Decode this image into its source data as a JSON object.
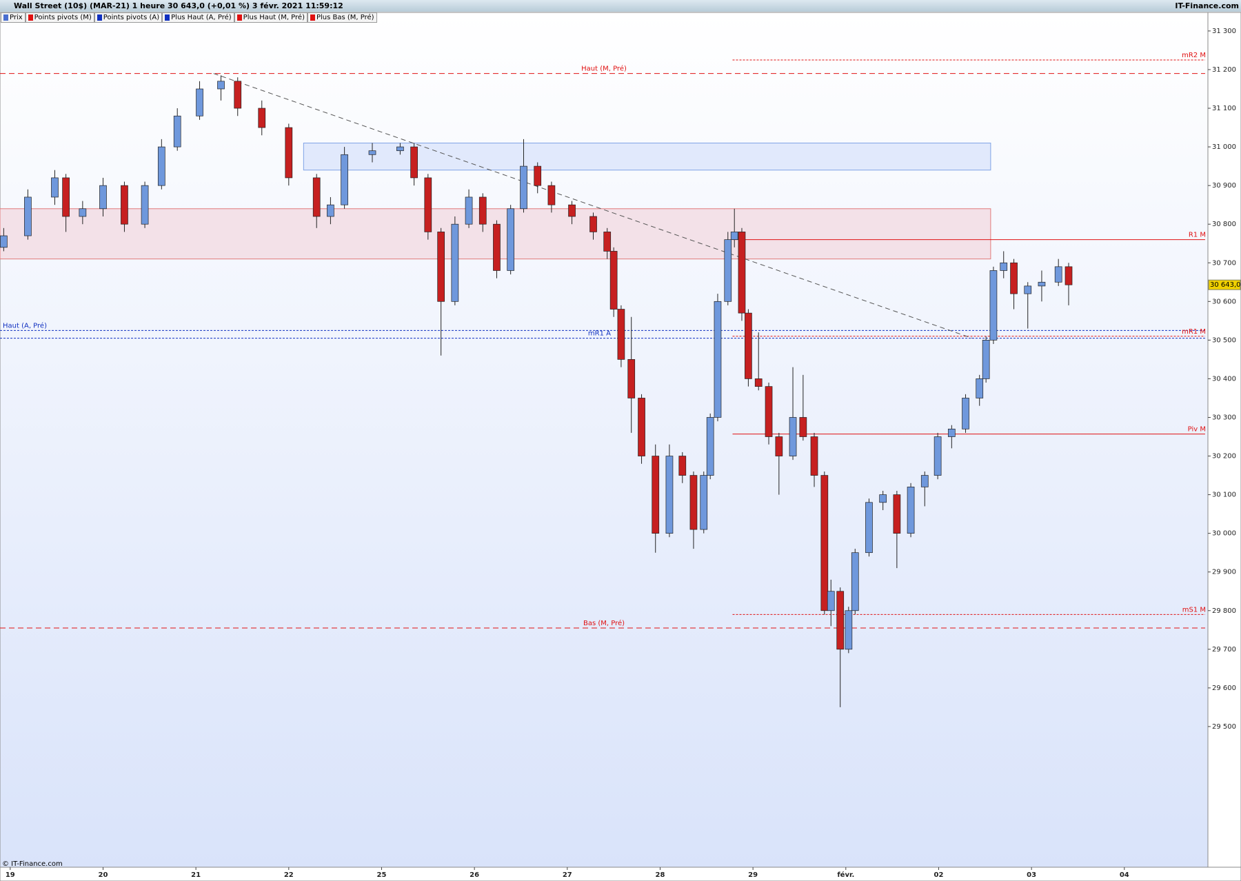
{
  "header": {
    "title": "Wall Street (10$) (MAR-21) 1 heure 30 643,0 (+0,01 %) 3 févr. 2021 11:59:12",
    "source": "IT-Finance.com"
  },
  "legend": [
    {
      "name": "Prix",
      "color": "#4a6fd0"
    },
    {
      "name": "Points pivots (M)",
      "color": "#e01010"
    },
    {
      "name": "Points pivots (A)",
      "color": "#1030c0"
    },
    {
      "name": "Plus Haut (A, Pré)",
      "color": "#1030c0"
    },
    {
      "name": "Plus Haut (M, Pré)",
      "color": "#e01010"
    },
    {
      "name": "Plus Bas (M, Pré)",
      "color": "#e01010"
    }
  ],
  "footer": "© IT-Finance.com",
  "chart_data": {
    "type": "candlestick",
    "up_color": "#6f98dc",
    "down_color": "#c62020",
    "xlim": [
      -0.11,
      12.9
    ],
    "ylim": [
      29136,
      31348
    ],
    "xticks": [
      {
        "value": 0,
        "label": "19"
      },
      {
        "value": 1,
        "label": "20"
      },
      {
        "value": 2,
        "label": "21"
      },
      {
        "value": 3,
        "label": "22"
      },
      {
        "value": 4,
        "label": "25"
      },
      {
        "value": 5,
        "label": "26"
      },
      {
        "value": 6,
        "label": "27"
      },
      {
        "value": 7,
        "label": "28"
      },
      {
        "value": 8,
        "label": "29"
      },
      {
        "value": 9,
        "label": "févr."
      },
      {
        "value": 10,
        "label": "02"
      },
      {
        "value": 11,
        "label": "03"
      },
      {
        "value": 12,
        "label": "04"
      }
    ],
    "yticks": [
      {
        "value": 29500,
        "label": "29 500"
      },
      {
        "value": 29600,
        "label": "29 600"
      },
      {
        "value": 29700,
        "label": "29 700"
      },
      {
        "value": 29800,
        "label": "29 800"
      },
      {
        "value": 29900,
        "label": "29 900"
      },
      {
        "value": 30000,
        "label": "30 000"
      },
      {
        "value": 30100,
        "label": "30 100"
      },
      {
        "value": 30200,
        "label": "30 200"
      },
      {
        "value": 30300,
        "label": "30 300"
      },
      {
        "value": 30400,
        "label": "30 400"
      },
      {
        "value": 30500,
        "label": "30 500"
      },
      {
        "value": 30600,
        "label": "30 600"
      },
      {
        "value": 30700,
        "label": "30 700"
      },
      {
        "value": 30800,
        "label": "30 800"
      },
      {
        "value": 30900,
        "label": "30 900"
      },
      {
        "value": 31000,
        "label": "31 000"
      },
      {
        "value": 31100,
        "label": "31 100"
      },
      {
        "value": 31200,
        "label": "31 200"
      },
      {
        "value": 31300,
        "label": "31 300"
      }
    ],
    "x": [
      -0.07,
      0.19,
      0.48,
      0.6,
      0.78,
      1.0,
      1.23,
      1.45,
      1.63,
      1.8,
      2.04,
      2.27,
      2.45,
      2.71,
      3.0,
      3.3,
      3.45,
      3.6,
      3.9,
      4.2,
      4.35,
      4.5,
      4.64,
      4.79,
      4.94,
      5.09,
      5.24,
      5.39,
      5.53,
      5.68,
      5.83,
      6.05,
      6.28,
      6.43,
      6.5,
      6.58,
      6.69,
      6.8,
      6.95,
      7.1,
      7.24,
      7.36,
      7.47,
      7.54,
      7.62,
      7.73,
      7.8,
      7.88,
      7.95,
      8.06,
      8.17,
      8.28,
      8.43,
      8.54,
      8.66,
      8.77,
      8.84,
      8.94,
      9.03,
      9.1,
      9.25,
      9.4,
      9.55,
      9.7,
      9.85,
      9.99,
      10.14,
      10.29,
      10.44,
      10.51,
      10.59,
      10.7,
      10.81,
      10.96,
      11.11,
      11.29,
      11.4
    ],
    "open": [
      30740,
      30770,
      30870,
      30920,
      30820,
      30840,
      30900,
      30800,
      30900,
      31000,
      31080,
      31150,
      31170,
      31100,
      31050,
      30920,
      30820,
      30850,
      30980,
      30990,
      31000,
      30920,
      30780,
      30600,
      30800,
      30870,
      30800,
      30680,
      30840,
      30950,
      30900,
      30850,
      30820,
      30780,
      30730,
      30580,
      30450,
      30350,
      30200,
      30000,
      30200,
      30150,
      30010,
      30150,
      30300,
      30600,
      30760,
      30780,
      30570,
      30400,
      30380,
      30250,
      30200,
      30300,
      30250,
      30150,
      29800,
      29850,
      29700,
      29800,
      29950,
      30080,
      30100,
      30000,
      30120,
      30150,
      30250,
      30270,
      30350,
      30400,
      30500,
      30680,
      30700,
      30620,
      30640,
      30650,
      30690
    ],
    "high": [
      30790,
      30890,
      30940,
      30930,
      30860,
      30920,
      30910,
      30910,
      31020,
      31100,
      31170,
      31185,
      31180,
      31120,
      31060,
      30930,
      30870,
      31000,
      31010,
      31010,
      31010,
      30930,
      30790,
      30820,
      30890,
      30880,
      30810,
      30850,
      31020,
      30960,
      30910,
      30860,
      30830,
      30790,
      30740,
      30590,
      30560,
      30360,
      30230,
      30230,
      30210,
      30160,
      30160,
      30310,
      30620,
      30780,
      30840,
      30790,
      30580,
      30520,
      30390,
      30260,
      30430,
      30410,
      30260,
      30160,
      29880,
      29860,
      29810,
      29960,
      30090,
      30110,
      30110,
      30130,
      30160,
      30260,
      30280,
      30360,
      30410,
      30510,
      30690,
      30730,
      30710,
      30650,
      30680,
      30710,
      30700
    ],
    "low": [
      30730,
      30760,
      30850,
      30780,
      30800,
      30820,
      30780,
      30790,
      30890,
      30990,
      31070,
      31120,
      31080,
      31030,
      30900,
      30790,
      30800,
      30840,
      30960,
      30980,
      30900,
      30760,
      30460,
      30590,
      30790,
      30780,
      30660,
      30670,
      30830,
      30880,
      30830,
      30800,
      30760,
      30710,
      30560,
      30430,
      30260,
      30180,
      29950,
      29990,
      30130,
      29960,
      30000,
      30140,
      30290,
      30590,
      30740,
      30550,
      30380,
      30370,
      30230,
      30100,
      30190,
      30240,
      30120,
      29790,
      29760,
      29550,
      29690,
      29790,
      29940,
      30060,
      29910,
      29990,
      30070,
      30140,
      30220,
      30260,
      30330,
      30390,
      30490,
      30660,
      30580,
      30530,
      30600,
      30640,
      30590
    ],
    "close": [
      30770,
      30870,
      30920,
      30820,
      30840,
      30900,
      30800,
      30900,
      31000,
      31080,
      31150,
      31170,
      31100,
      31050,
      30920,
      30820,
      30850,
      30980,
      30990,
      31000,
      30920,
      30780,
      30600,
      30800,
      30870,
      30800,
      30680,
      30840,
      30950,
      30900,
      30850,
      30820,
      30780,
      30730,
      30580,
      30450,
      30350,
      30200,
      30000,
      30200,
      30150,
      30010,
      30150,
      30300,
      30600,
      30760,
      30780,
      30570,
      30400,
      30380,
      30250,
      30200,
      30300,
      30250,
      30150,
      29800,
      29850,
      29700,
      29800,
      29950,
      30080,
      30100,
      30000,
      30120,
      30150,
      30250,
      30270,
      30350,
      30400,
      30500,
      30680,
      30700,
      30620,
      30640,
      30650,
      30690,
      30643
    ],
    "zones": [
      {
        "xlim": [
          3.16,
          10.56
        ],
        "ylim": [
          30940,
          31010
        ],
        "color": "#dbe5fb",
        "border": "#7fa3e6"
      },
      {
        "xlim": [
          -0.11,
          10.56
        ],
        "ylim": [
          30710,
          30840
        ],
        "color": "#f2dbe2",
        "border": "#e07a7a"
      }
    ],
    "trendline": {
      "x": [
        2.19,
        10.36
      ],
      "y": [
        31190,
        30505
      ],
      "color": "#555555"
    },
    "levels": [
      {
        "name": "Haut (M, Pré)",
        "value": 31190,
        "color": "#e01010",
        "style": "dashed",
        "span": "full",
        "label_pos": "center"
      },
      {
        "name": "Bas (M, Pré)",
        "value": 29755,
        "color": "#e01010",
        "style": "dashed",
        "span": "full",
        "label_pos": "center"
      },
      {
        "name": "Haut (A, Pré)",
        "value": 30525,
        "color": "#1030c0",
        "style": "dotted",
        "span": "full",
        "label_pos": "left"
      },
      {
        "name": "mR1 A",
        "value": 30505,
        "color": "#1030c0",
        "style": "dotted",
        "span": "full",
        "label_pos": "mid"
      },
      {
        "name": "mR2 M",
        "value": 31225,
        "color": "#e01010",
        "style": "dotted",
        "span": "right",
        "label_pos": "right"
      },
      {
        "name": "R1 M",
        "value": 30760,
        "color": "#e01010",
        "style": "solid",
        "span": "right",
        "label_pos": "right"
      },
      {
        "name": "mR1 M",
        "value": 30510,
        "color": "#e01010",
        "style": "dotted",
        "span": "right",
        "label_pos": "right"
      },
      {
        "name": "Piv M",
        "value": 30257,
        "color": "#e01010",
        "style": "solid",
        "span": "right",
        "label_pos": "right"
      },
      {
        "name": "mS1 M",
        "value": 29790,
        "color": "#e01010",
        "style": "dotted",
        "span": "right",
        "label_pos": "right"
      }
    ],
    "last_price": {
      "value": 30643,
      "label": "30 643,0",
      "color": "#f0d000"
    }
  }
}
